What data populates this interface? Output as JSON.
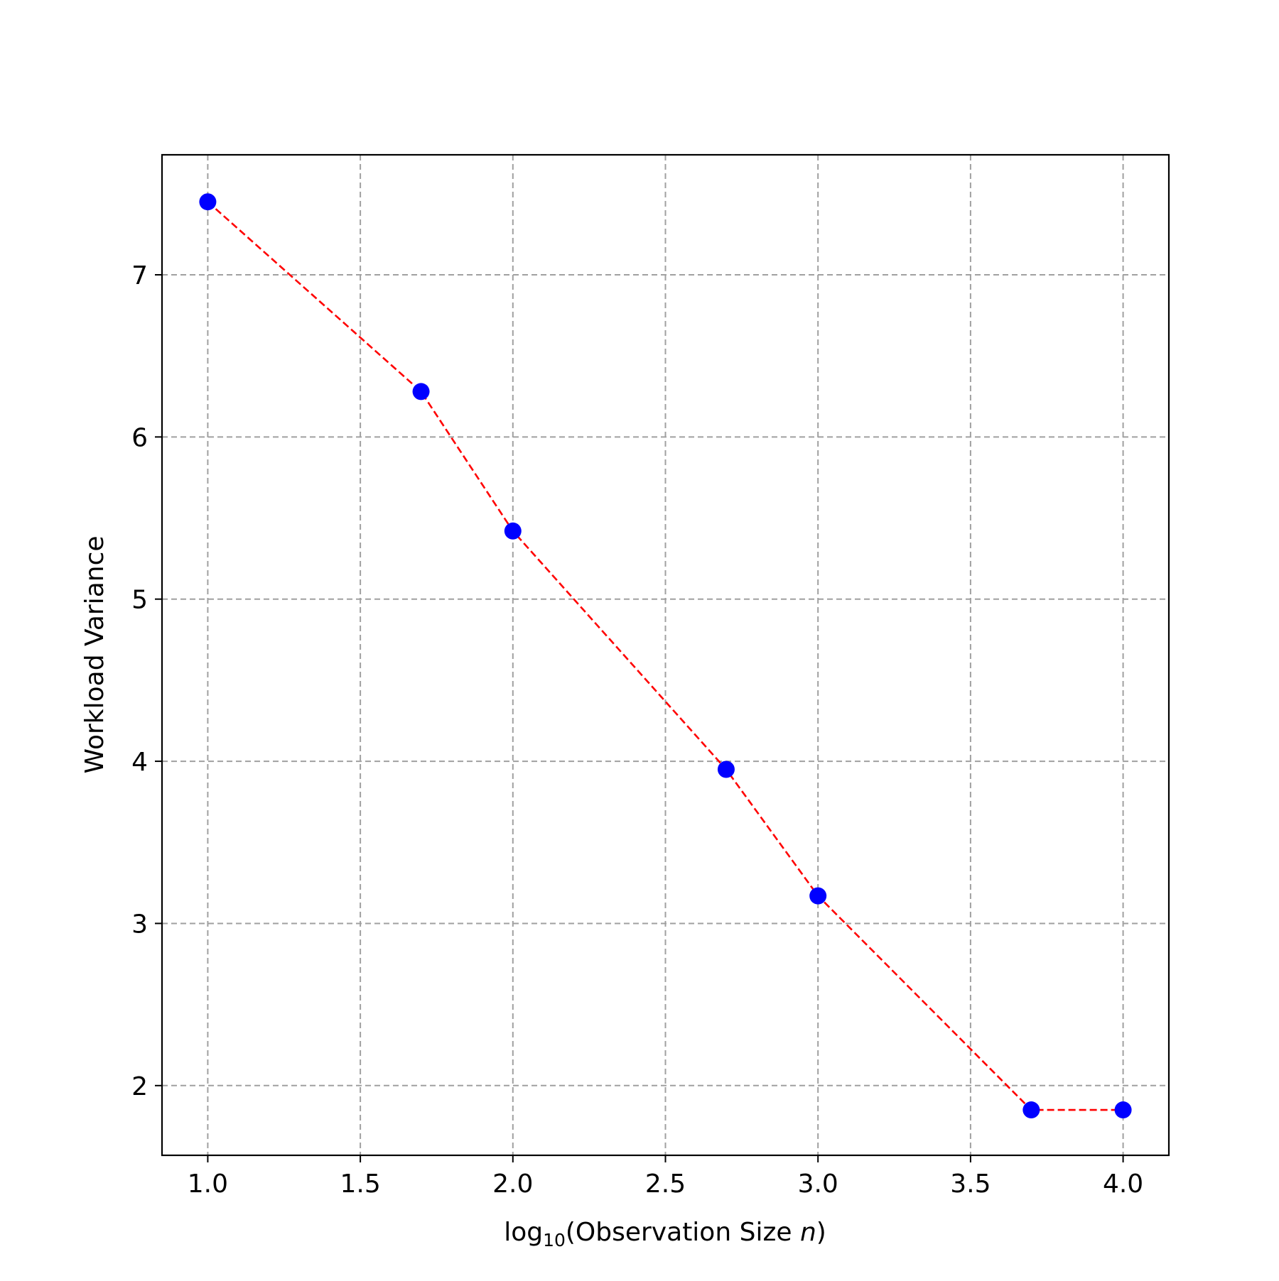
{
  "chart_data": {
    "type": "line",
    "x": [
      1.0,
      1.699,
      2.0,
      2.699,
      3.0,
      3.699,
      4.0
    ],
    "series": [
      {
        "values": [
          7.45,
          6.28,
          5.42,
          3.95,
          3.17,
          1.85,
          1.85
        ],
        "marker_color": "#0000ff",
        "line_color": "#ff0000",
        "line_style": "dashed"
      }
    ],
    "xlabel_prefix": "log",
    "xlabel_subscript": "10",
    "xlabel_main": "(Observation Size ",
    "xlabel_variable": "n",
    "xlabel_suffix": ")",
    "ylabel": "Workload Variance",
    "xlim": [
      0.85,
      4.15
    ],
    "ylim": [
      1.57,
      7.74
    ],
    "x_ticks": [
      1.0,
      1.5,
      2.0,
      2.5,
      3.0,
      3.5,
      4.0
    ],
    "x_tick_labels": [
      "1.0",
      "1.5",
      "2.0",
      "2.5",
      "3.0",
      "3.5",
      "4.0"
    ],
    "y_ticks": [
      2,
      3,
      4,
      5,
      6,
      7
    ],
    "y_tick_labels": [
      "2",
      "3",
      "4",
      "5",
      "6",
      "7"
    ],
    "grid": true,
    "grid_color": "#a0a0a0",
    "legend": "none"
  }
}
